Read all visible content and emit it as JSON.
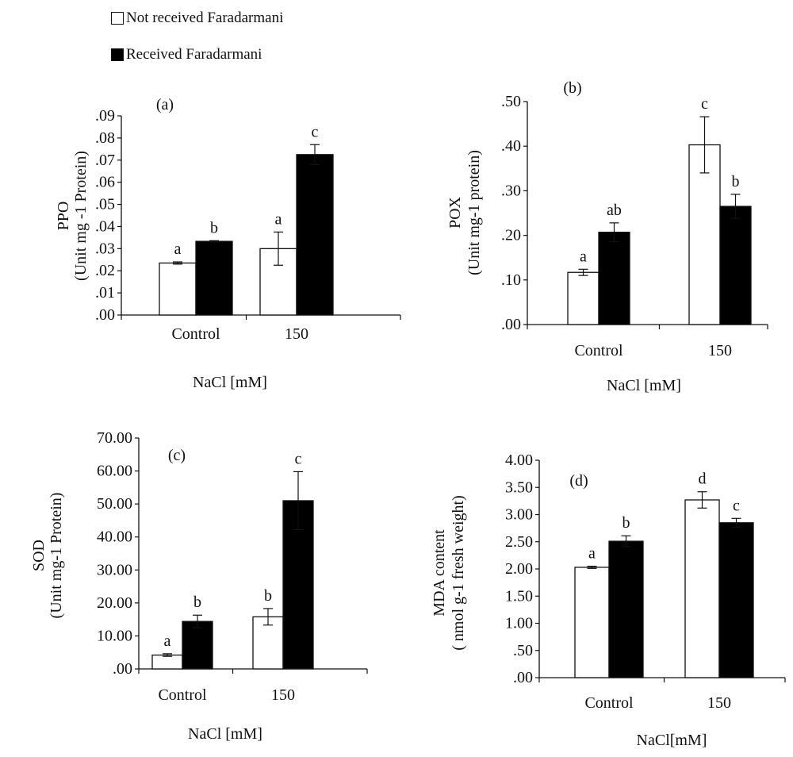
{
  "legend": {
    "items": [
      {
        "label": "Not received Faradarmani",
        "color": "#ffffff"
      },
      {
        "label": "Received Faradarmani",
        "color": "#000000"
      }
    ]
  },
  "chart_data": [
    {
      "type": "bar",
      "panel": "(a)",
      "ylabel_top": "PPO",
      "ylabel_bottom": "(Unit mg -1 Protein)",
      "xlabel": "NaCl [mM]",
      "categories": [
        "Control",
        "150"
      ],
      "ylim": [
        0,
        0.09
      ],
      "yticks": [
        0,
        0.01,
        0.02,
        0.03,
        0.04,
        0.05,
        0.06,
        0.07,
        0.08,
        0.09
      ],
      "ytick_labels": [
        ".00",
        ".01",
        ".02",
        ".03",
        ".04",
        ".05",
        ".06",
        ".07",
        ".08",
        ".09"
      ],
      "series": [
        {
          "name": "Not received Faradarmani",
          "values": [
            0.0235,
            0.03
          ],
          "errors": [
            0.0005,
            0.0075
          ],
          "letters": [
            "a",
            "a"
          ]
        },
        {
          "name": "Received Faradarmani",
          "values": [
            0.0333,
            0.0725
          ],
          "errors": [
            0.0003,
            0.0045
          ],
          "letters": [
            "b",
            "c"
          ]
        }
      ]
    },
    {
      "type": "bar",
      "panel": "(b)",
      "ylabel_top": "POX",
      "ylabel_bottom": "(Unit mg-1 protein)",
      "xlabel": "NaCl [mM]",
      "categories": [
        "Control",
        "150"
      ],
      "ylim": [
        0,
        0.5
      ],
      "yticks": [
        0,
        0.1,
        0.2,
        0.3,
        0.4,
        0.5
      ],
      "ytick_labels": [
        ".00",
        ".10",
        ".20",
        ".30",
        ".40",
        ".50"
      ],
      "series": [
        {
          "name": "Not received Faradarmani",
          "values": [
            0.117,
            0.403
          ],
          "errors": [
            0.007,
            0.063
          ],
          "letters": [
            "a",
            "c"
          ]
        },
        {
          "name": "Received Faradarmani",
          "values": [
            0.207,
            0.265
          ],
          "errors": [
            0.021,
            0.027
          ],
          "letters": [
            "ab",
            "b"
          ]
        }
      ]
    },
    {
      "type": "bar",
      "panel": "(c)",
      "ylabel_top": "SOD",
      "ylabel_bottom": "(Unit mg-1 Protein)",
      "xlabel": "NaCl [mM]",
      "categories": [
        "Control",
        "150"
      ],
      "ylim": [
        0,
        70
      ],
      "yticks": [
        0,
        10,
        20,
        30,
        40,
        50,
        60,
        70
      ],
      "ytick_labels": [
        ".00",
        "10.00",
        "20.00",
        "30.00",
        "40.00",
        "50.00",
        "60.00",
        "70.00"
      ],
      "series": [
        {
          "name": "Not received Faradarmani",
          "values": [
            4.2,
            15.8
          ],
          "errors": [
            0.4,
            2.5
          ],
          "letters": [
            "a",
            "b"
          ]
        },
        {
          "name": "Received Faradarmani",
          "values": [
            14.4,
            51.0
          ],
          "errors": [
            1.9,
            8.8
          ],
          "letters": [
            "b",
            "c"
          ]
        }
      ]
    },
    {
      "type": "bar",
      "panel": "(d)",
      "ylabel_top": "MDA content",
      "ylabel_bottom": "( nmol g-1 fresh weight)",
      "xlabel": "NaCl[mM]",
      "categories": [
        "Control",
        "150"
      ],
      "ylim": [
        0,
        4
      ],
      "yticks": [
        0,
        0.5,
        1,
        1.5,
        2,
        2.5,
        3,
        3.5,
        4
      ],
      "ytick_labels": [
        ".00",
        ".50",
        "1.00",
        "1.50",
        "2.00",
        "2.50",
        "3.00",
        "3.50",
        "4.00"
      ],
      "series": [
        {
          "name": "Not received Faradarmani",
          "values": [
            2.03,
            3.27
          ],
          "errors": [
            0.02,
            0.15
          ],
          "letters": [
            "a",
            "d"
          ]
        },
        {
          "name": "Received Faradarmani",
          "values": [
            2.51,
            2.85
          ],
          "errors": [
            0.1,
            0.08
          ],
          "letters": [
            "b",
            "c"
          ]
        }
      ]
    }
  ]
}
